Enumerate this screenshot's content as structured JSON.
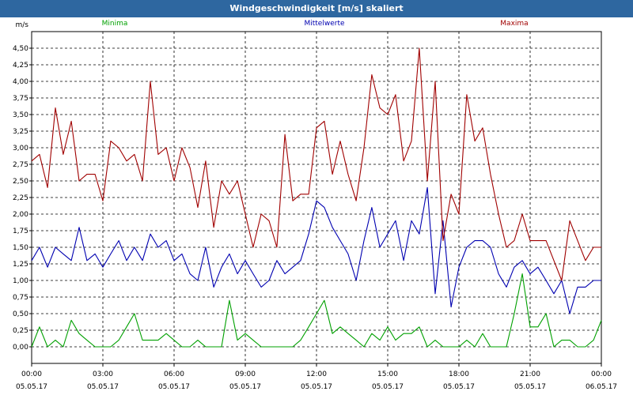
{
  "window": {
    "title": "Windgeschwindigkeit [m/s] skaliert"
  },
  "chart_data": {
    "type": "line",
    "title": "Windgeschwindigkeit [m/s] skaliert",
    "ylabel": "m/s",
    "ylim": [
      -0.25,
      4.75
    ],
    "yticks": [
      0,
      0.25,
      0.5,
      0.75,
      1.0,
      1.25,
      1.5,
      1.75,
      2.0,
      2.25,
      2.5,
      2.75,
      3.0,
      3.25,
      3.5,
      3.75,
      4.0,
      4.25,
      4.5
    ],
    "ytick_labels": [
      "0,00",
      "0,25",
      "0,50",
      "0,75",
      "1,00",
      "1,25",
      "1,50",
      "1,75",
      "2,00",
      "2,25",
      "2,50",
      "2,75",
      "3,00",
      "3,25",
      "3,50",
      "3,75",
      "4,00",
      "4,25",
      "4,50"
    ],
    "xlim": [
      0,
      24
    ],
    "xticks": [
      {
        "time": "00:00",
        "date": "05.05.17"
      },
      {
        "time": "03:00",
        "date": "05.05.17"
      },
      {
        "time": "06:00",
        "date": "05.05.17"
      },
      {
        "time": "09:00",
        "date": "05.05.17"
      },
      {
        "time": "12:00",
        "date": "05.05.17"
      },
      {
        "time": "15:00",
        "date": "05.05.17"
      },
      {
        "time": "18:00",
        "date": "05.05.17"
      },
      {
        "time": "21:00",
        "date": "05.05.17"
      },
      {
        "time": "00:00",
        "date": "06.05.17"
      }
    ],
    "grid": true,
    "legend_position": "top",
    "series": [
      {
        "name": "Minima",
        "color": "#00a000",
        "x": [
          0,
          0.33,
          0.67,
          1,
          1.33,
          1.67,
          2,
          2.33,
          2.67,
          3,
          3.33,
          3.67,
          4,
          4.33,
          4.67,
          5,
          5.33,
          5.67,
          6,
          6.33,
          6.67,
          7,
          7.33,
          7.67,
          8,
          8.33,
          8.67,
          9,
          9.33,
          9.67,
          10,
          10.33,
          10.67,
          11,
          11.33,
          11.67,
          12,
          12.33,
          12.67,
          13,
          13.33,
          13.67,
          14,
          14.33,
          14.67,
          15,
          15.33,
          15.67,
          16,
          16.33,
          16.67,
          17,
          17.33,
          17.67,
          18,
          18.33,
          18.67,
          19,
          19.33,
          19.67,
          20,
          20.33,
          20.67,
          21,
          21.33,
          21.67,
          22,
          22.33,
          22.67,
          23,
          23.33,
          23.67,
          24
        ],
        "y": [
          0,
          0.3,
          0,
          0.1,
          0,
          0.4,
          0.2,
          0.1,
          0,
          0,
          0,
          0.1,
          0.3,
          0.5,
          0.1,
          0.1,
          0.1,
          0.2,
          0.1,
          0,
          0,
          0.1,
          0,
          0,
          0,
          0.7,
          0.1,
          0.2,
          0.1,
          0,
          0,
          0,
          0,
          0,
          0.1,
          0.3,
          0.5,
          0.7,
          0.2,
          0.3,
          0.2,
          0.1,
          0,
          0.2,
          0.1,
          0.3,
          0.1,
          0.2,
          0.2,
          0.3,
          0,
          0.1,
          0,
          0,
          0,
          0.1,
          0,
          0.2,
          0,
          0,
          0,
          0.5,
          1.1,
          0.3,
          0.3,
          0.5,
          0,
          0.1,
          0.1,
          0,
          0,
          0.1,
          0.4
        ]
      },
      {
        "name": "Mittelwerte",
        "color": "#0000b0",
        "x": [
          0,
          0.33,
          0.67,
          1,
          1.33,
          1.67,
          2,
          2.33,
          2.67,
          3,
          3.33,
          3.67,
          4,
          4.33,
          4.67,
          5,
          5.33,
          5.67,
          6,
          6.33,
          6.67,
          7,
          7.33,
          7.67,
          8,
          8.33,
          8.67,
          9,
          9.33,
          9.67,
          10,
          10.33,
          10.67,
          11,
          11.33,
          11.67,
          12,
          12.33,
          12.67,
          13,
          13.33,
          13.67,
          14,
          14.33,
          14.67,
          15,
          15.33,
          15.67,
          16,
          16.33,
          16.67,
          17,
          17.33,
          17.67,
          18,
          18.33,
          18.67,
          19,
          19.33,
          19.67,
          20,
          20.33,
          20.67,
          21,
          21.33,
          21.67,
          22,
          22.33,
          22.67,
          23,
          23.33,
          23.67,
          24
        ],
        "y": [
          1.3,
          1.5,
          1.2,
          1.5,
          1.4,
          1.3,
          1.8,
          1.3,
          1.4,
          1.2,
          1.4,
          1.6,
          1.3,
          1.5,
          1.3,
          1.7,
          1.5,
          1.6,
          1.3,
          1.4,
          1.1,
          1.0,
          1.5,
          0.9,
          1.2,
          1.4,
          1.1,
          1.3,
          1.1,
          0.9,
          1.0,
          1.3,
          1.1,
          1.2,
          1.3,
          1.7,
          2.2,
          2.1,
          1.8,
          1.6,
          1.4,
          1.0,
          1.6,
          2.1,
          1.5,
          1.7,
          1.9,
          1.3,
          1.9,
          1.7,
          2.4,
          0.8,
          1.9,
          0.6,
          1.2,
          1.5,
          1.6,
          1.6,
          1.5,
          1.1,
          0.9,
          1.2,
          1.3,
          1.1,
          1.2,
          1.0,
          0.8,
          1.0,
          0.5,
          0.9,
          0.9,
          1.0,
          1.0
        ]
      },
      {
        "name": "Maxima",
        "color": "#a00000",
        "x": [
          0,
          0.33,
          0.67,
          1,
          1.33,
          1.67,
          2,
          2.33,
          2.67,
          3,
          3.33,
          3.67,
          4,
          4.33,
          4.67,
          5,
          5.33,
          5.67,
          6,
          6.33,
          6.67,
          7,
          7.33,
          7.67,
          8,
          8.33,
          8.67,
          9,
          9.33,
          9.67,
          10,
          10.33,
          10.67,
          11,
          11.33,
          11.67,
          12,
          12.33,
          12.67,
          13,
          13.33,
          13.67,
          14,
          14.33,
          14.67,
          15,
          15.33,
          15.67,
          16,
          16.33,
          16.67,
          17,
          17.33,
          17.67,
          18,
          18.33,
          18.67,
          19,
          19.33,
          19.67,
          20,
          20.33,
          20.67,
          21,
          21.33,
          21.67,
          22,
          22.33,
          22.67,
          23,
          23.33,
          23.67,
          24
        ],
        "y": [
          2.8,
          2.9,
          2.4,
          3.6,
          2.9,
          3.4,
          2.5,
          2.6,
          2.6,
          2.2,
          3.1,
          3.0,
          2.8,
          2.9,
          2.5,
          4.0,
          2.9,
          3.0,
          2.5,
          3.0,
          2.7,
          2.1,
          2.8,
          1.8,
          2.5,
          2.3,
          2.5,
          2.0,
          1.5,
          2.0,
          1.9,
          1.5,
          3.2,
          2.2,
          2.3,
          2.3,
          3.3,
          3.4,
          2.6,
          3.1,
          2.6,
          2.2,
          3.0,
          4.1,
          3.6,
          3.5,
          3.8,
          2.8,
          3.1,
          4.5,
          2.5,
          4.0,
          1.6,
          2.3,
          2.0,
          3.8,
          3.1,
          3.3,
          2.6,
          2.0,
          1.5,
          1.6,
          2.0,
          1.6,
          1.6,
          1.6,
          1.3,
          1.0,
          1.9,
          1.6,
          1.3,
          1.5,
          1.5
        ]
      }
    ]
  }
}
